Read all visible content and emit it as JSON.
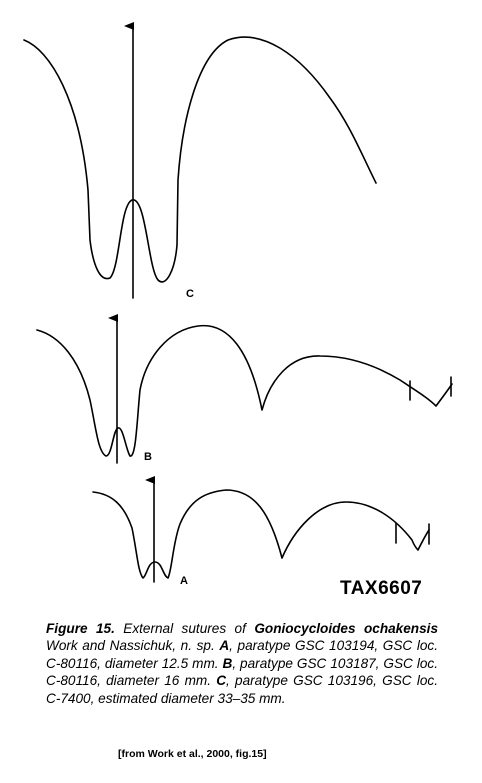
{
  "figure": {
    "panels": [
      {
        "id": "C",
        "label": "C"
      },
      {
        "id": "B",
        "label": "B"
      },
      {
        "id": "A",
        "label": "A"
      }
    ]
  },
  "tax_id": "TAX6607",
  "caption": {
    "figure_no": "Figure 15.",
    "text_1": " External sutures of ",
    "species": "Goniocycloides ochakensis",
    "text_2": " Work and Nassichuk, n. sp. ",
    "label_a": "A",
    "text_a": ", paratype GSC 103194, GSC loc. C-80116, diameter 12.5 mm. ",
    "label_b": "B",
    "text_b": ", paratype GSC 103187, GSC loc. C-80116, diameter 16 mm. ",
    "label_c": "C",
    "text_c": ", paratype GSC 103196, GSC loc. C-7400, estimated diameter 33–35 mm."
  },
  "source": "[from Work et al., 2000, fig.15]"
}
